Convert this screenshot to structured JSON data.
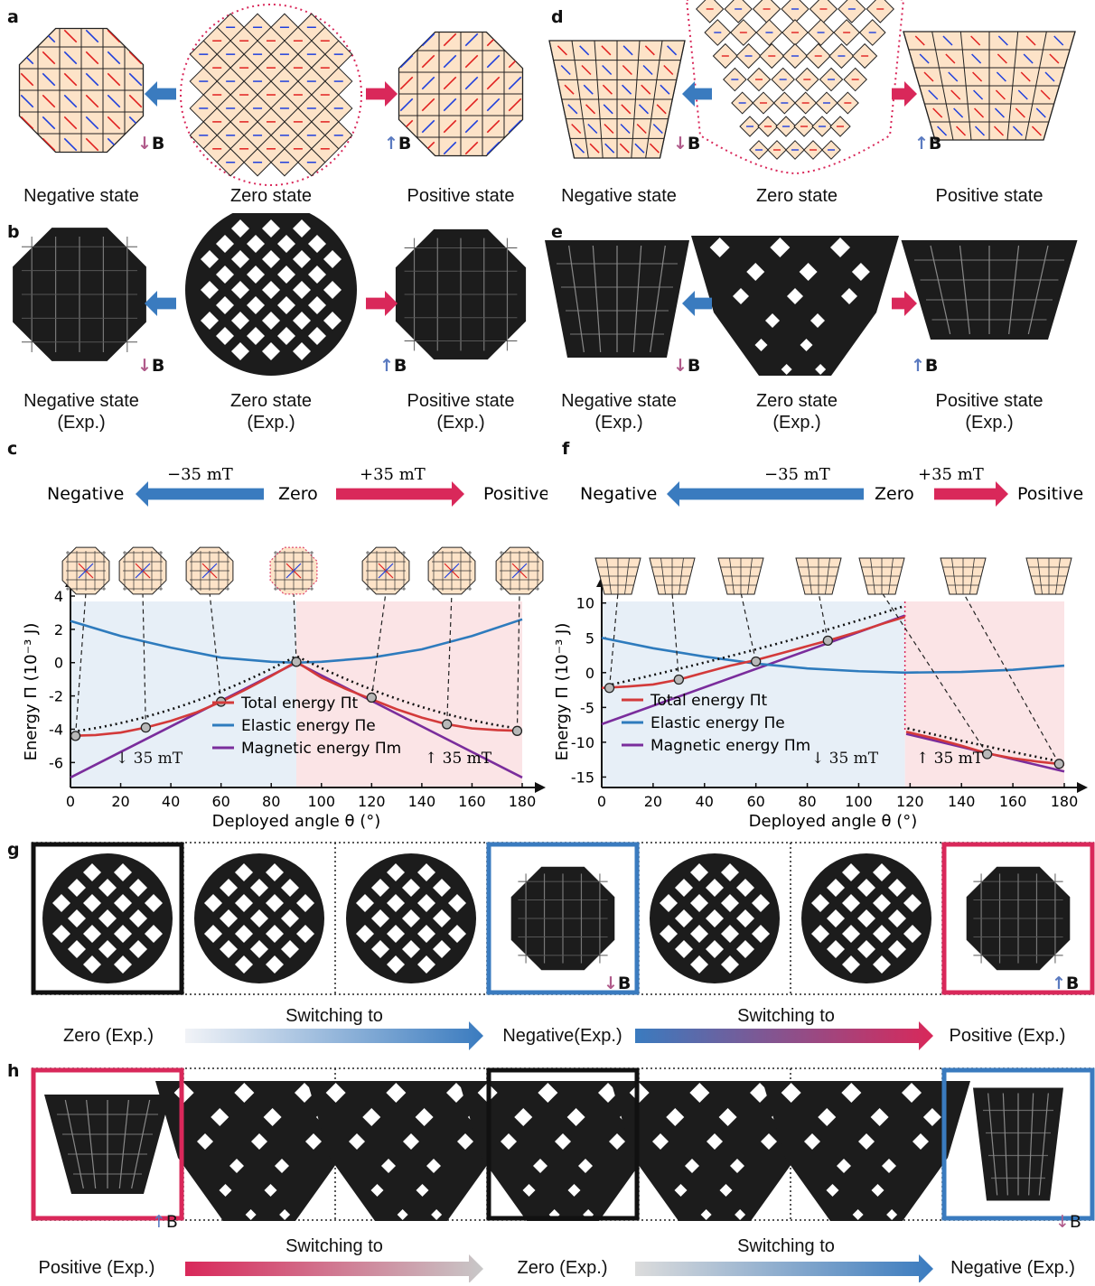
{
  "panels": {
    "a": {
      "label": "a",
      "states": [
        "Negative state",
        "Zero state",
        "Positive state"
      ]
    },
    "b": {
      "label": "b",
      "states": [
        "Negative state",
        "Zero state",
        "Positive state"
      ],
      "exp": "(Exp.)"
    },
    "d": {
      "label": "d",
      "states": [
        "Negative state",
        "Zero state",
        "Positive state"
      ]
    },
    "e": {
      "label": "e",
      "states": [
        "Negative state",
        "Zero state",
        "Positive state"
      ],
      "exp": "(Exp.)"
    },
    "c": {
      "label": "c"
    },
    "f": {
      "label": "f"
    },
    "g": {
      "label": "g",
      "switch_label": "Switching to",
      "states": [
        "Zero (Exp.)",
        "Negative(Exp.)",
        "Positive (Exp.)"
      ]
    },
    "h": {
      "label": "h",
      "switch_label": "Switching to",
      "states": [
        "Positive (Exp.)",
        "Zero (Exp.)",
        "Negative (Exp.)"
      ]
    }
  },
  "field_symbol": "B",
  "field_arrow_up": "↑",
  "field_arrow_down": "↓",
  "colors": {
    "negative": "#3a7bbf",
    "positive": "#d9285a",
    "tile": "#fde3c8",
    "total": "#d33a3a",
    "elastic": "#2e7bbd",
    "magnetic": "#7a2d9c",
    "neg_bg": "#e7eff7",
    "pos_bg": "#fbe4e6"
  },
  "chart_data": [
    {
      "panel": "c",
      "type": "line",
      "xlabel": "Deployed angle θ (°)",
      "ylabel": "Energy Π (10⁻³ J)",
      "xlim": [
        0,
        180
      ],
      "ylim": [
        -7.5,
        4
      ],
      "xticks": [
        0,
        20,
        40,
        60,
        80,
        100,
        120,
        140,
        160,
        180
      ],
      "yticks": [
        -6,
        -4,
        -2,
        0,
        2,
        4
      ],
      "header": {
        "left": "Negative",
        "mid": "Zero",
        "right": "Positive",
        "left_field": "−35 mT",
        "right_field": "+35 mT"
      },
      "field_labels": [
        "35 mT",
        "35 mT"
      ],
      "series": [
        {
          "name": "Total energy Πt",
          "x": [
            0,
            10,
            20,
            30,
            40,
            50,
            60,
            70,
            80,
            90,
            100,
            110,
            120,
            130,
            140,
            150,
            160,
            170,
            180
          ],
          "y": [
            -4.4,
            -4.35,
            -4.2,
            -3.9,
            -3.5,
            -3.0,
            -2.35,
            -1.6,
            -0.8,
            0.05,
            -0.9,
            -1.6,
            -2.2,
            -2.8,
            -3.3,
            -3.7,
            -3.95,
            -4.05,
            -4.1
          ]
        },
        {
          "name": "Elastic energy Πe",
          "x": [
            0,
            20,
            40,
            60,
            80,
            90,
            100,
            120,
            140,
            160,
            180
          ],
          "y": [
            2.5,
            1.6,
            0.9,
            0.3,
            0.05,
            0.0,
            0.05,
            0.3,
            0.8,
            1.6,
            2.6
          ]
        },
        {
          "name": "Magnetic energy Πm",
          "x": [
            0,
            90,
            180
          ],
          "y": [
            -6.9,
            0.0,
            -6.9
          ]
        }
      ],
      "points": {
        "x": [
          2,
          30,
          60,
          90,
          120,
          150,
          178
        ],
        "y": [
          -4.4,
          -3.9,
          -2.35,
          0.05,
          -2.1,
          -3.7,
          -4.1
        ]
      }
    },
    {
      "panel": "f",
      "type": "line",
      "xlabel": "Deployed angle θ (°)",
      "ylabel": "Energy Π (10⁻³ J)",
      "xlim": [
        0,
        180
      ],
      "ylim": [
        -16.5,
        11
      ],
      "xticks": [
        0,
        20,
        40,
        60,
        80,
        100,
        120,
        140,
        160,
        180
      ],
      "yticks": [
        -15,
        -10,
        -5,
        0,
        5,
        10
      ],
      "header": {
        "left": "Negative",
        "mid": "Zero",
        "right": "Positive",
        "left_field": "−35 mT",
        "right_field": "+35 mT"
      },
      "field_labels": [
        "35 mT",
        "35 mT"
      ],
      "series": [
        {
          "name": "Total energy Πt",
          "x": [
            0,
            10,
            20,
            30,
            40,
            50,
            60,
            70,
            80,
            90,
            100,
            110,
            118,
            118.5,
            130,
            140,
            150,
            160,
            170,
            180
          ],
          "y": [
            -2.2,
            -2.0,
            -1.7,
            -1.0,
            0,
            1.0,
            1.8,
            2.8,
            3.8,
            4.8,
            5.9,
            7.1,
            8.0,
            -8.5,
            -9.5,
            -10.5,
            -11.6,
            -12.3,
            -12.8,
            -13.2
          ]
        },
        {
          "name": "Elastic energy Πe",
          "x": [
            0,
            20,
            40,
            60,
            80,
            100,
            118,
            140,
            160,
            180
          ],
          "y": [
            5.0,
            3.5,
            2.3,
            1.3,
            0.6,
            0.2,
            0.0,
            0.1,
            0.4,
            1.0
          ]
        },
        {
          "name": "Magnetic energy Πm",
          "x": [
            0,
            118,
            118.5,
            180
          ],
          "y": [
            -7.4,
            8.2,
            -8.8,
            -14.2
          ]
        }
      ],
      "points": {
        "x": [
          3,
          30,
          60,
          88,
          150,
          178
        ],
        "y": [
          -2.2,
          -1.0,
          1.6,
          4.6,
          -11.7,
          -13.1
        ]
      }
    }
  ]
}
